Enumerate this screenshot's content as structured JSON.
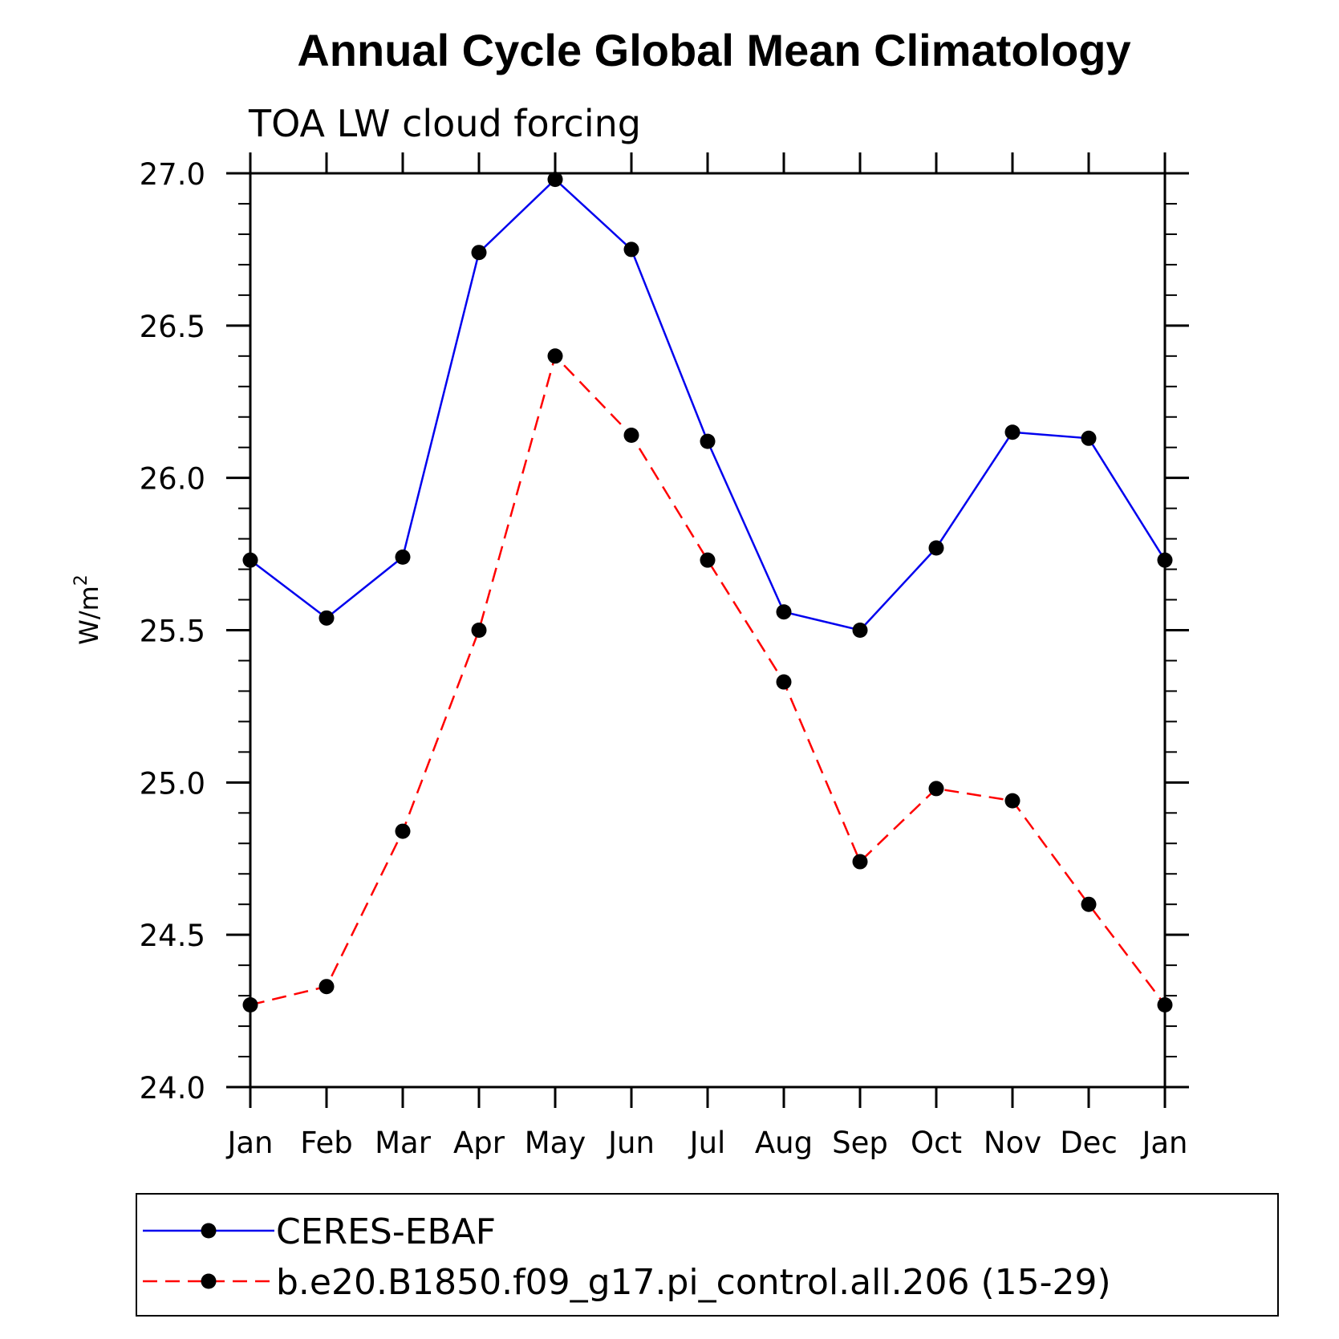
{
  "chart_data": {
    "type": "line",
    "title": "Annual Cycle Global Mean Climatology",
    "subtitle": "TOA LW cloud forcing",
    "ylabel": "W/m",
    "ylabel_superscript": "2",
    "xlabel": "",
    "categories": [
      "Jan",
      "Feb",
      "Mar",
      "Apr",
      "May",
      "Jun",
      "Jul",
      "Aug",
      "Sep",
      "Oct",
      "Nov",
      "Dec",
      "Jan"
    ],
    "ylim": [
      24.0,
      27.0
    ],
    "yticks": [
      "24.0",
      "24.5",
      "25.0",
      "25.5",
      "26.0",
      "26.5",
      "27.0"
    ],
    "grid": false,
    "legend_position": "bottom",
    "series": [
      {
        "name": "CERES-EBAF",
        "color": "#0000ee",
        "line_style": "solid",
        "marker": "filled-circle",
        "values": [
          25.73,
          25.54,
          25.74,
          26.74,
          26.98,
          26.75,
          26.12,
          25.56,
          25.5,
          25.77,
          26.15,
          26.13,
          25.73
        ]
      },
      {
        "name": "b.e20.B1850.f09_g17.pi_control.all.206 (15-29)",
        "color": "#ff0000",
        "line_style": "dashed",
        "marker": "filled-circle",
        "values": [
          24.27,
          24.33,
          24.84,
          25.5,
          26.4,
          26.14,
          25.73,
          25.33,
          24.74,
          24.98,
          24.94,
          24.6,
          24.27
        ]
      }
    ]
  }
}
